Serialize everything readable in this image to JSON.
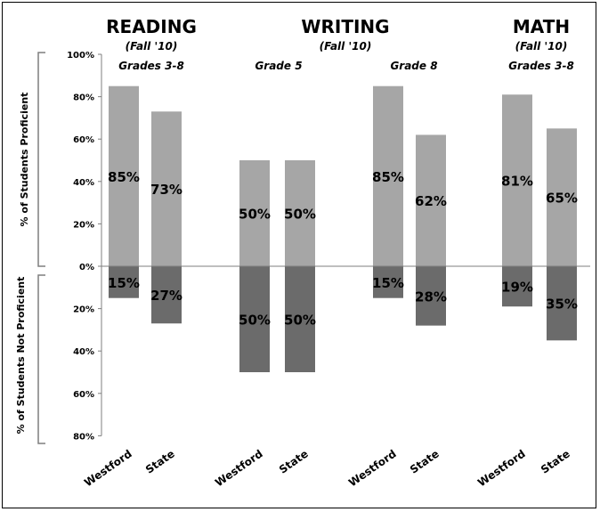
{
  "chart_data": {
    "type": "bar",
    "orientation": "diverging",
    "headers": [
      {
        "title": "READING",
        "term": "(Fall '10)"
      },
      {
        "title": "WRITING",
        "term": "(Fall '10)"
      },
      {
        "title": "MATH",
        "term": "(Fall '10)"
      }
    ],
    "groups": [
      {
        "label": "Grades 3-8"
      },
      {
        "label": "Grade 5"
      },
      {
        "label": "Grade 8"
      },
      {
        "label": "Grades 3-8"
      }
    ],
    "bars": [
      {
        "group": 0,
        "category": "Westford",
        "proficient": 85,
        "not_proficient": 15,
        "proficient_label": "85%",
        "not_proficient_label": "15%"
      },
      {
        "group": 0,
        "category": "State",
        "proficient": 73,
        "not_proficient": 27,
        "proficient_label": "73%",
        "not_proficient_label": "27%"
      },
      {
        "group": 1,
        "category": "Westford",
        "proficient": 50,
        "not_proficient": 50,
        "proficient_label": "50%",
        "not_proficient_label": "50%"
      },
      {
        "group": 1,
        "category": "State",
        "proficient": 50,
        "not_proficient": 50,
        "proficient_label": "50%",
        "not_proficient_label": "50%"
      },
      {
        "group": 2,
        "category": "Westford",
        "proficient": 85,
        "not_proficient": 15,
        "proficient_label": "85%",
        "not_proficient_label": "15%"
      },
      {
        "group": 2,
        "category": "State",
        "proficient": 62,
        "not_proficient": 28,
        "proficient_label": "62%",
        "not_proficient_label": "28%"
      },
      {
        "group": 3,
        "category": "Westford",
        "proficient": 81,
        "not_proficient": 19,
        "proficient_label": "81%",
        "not_proficient_label": "19%"
      },
      {
        "group": 3,
        "category": "State",
        "proficient": 65,
        "not_proficient": 35,
        "proficient_label": "65%",
        "not_proficient_label": "35%"
      }
    ],
    "yaxis": {
      "range": [
        -80,
        100
      ],
      "ticks": [
        {
          "value": 100,
          "label": "100%"
        },
        {
          "value": 80,
          "label": "80%"
        },
        {
          "value": 60,
          "label": "60%"
        },
        {
          "value": 40,
          "label": "40%"
        },
        {
          "value": 20,
          "label": "20%"
        },
        {
          "value": 0,
          "label": "0%"
        },
        {
          "value": -20,
          "label": "20%"
        },
        {
          "value": -40,
          "label": "40%"
        },
        {
          "value": -60,
          "label": "60%"
        },
        {
          "value": -80,
          "label": "80%"
        }
      ]
    },
    "ylabel_top": "% of Students Proficient",
    "ylabel_bottom": "% of Students Not Proficient",
    "grid": false,
    "legend": "none",
    "colors": {
      "proficient": "#a6a6a6",
      "not_proficient": "#6b6b6b",
      "axis": "#7f7f7f",
      "bracket": "#7f7f7f"
    }
  }
}
